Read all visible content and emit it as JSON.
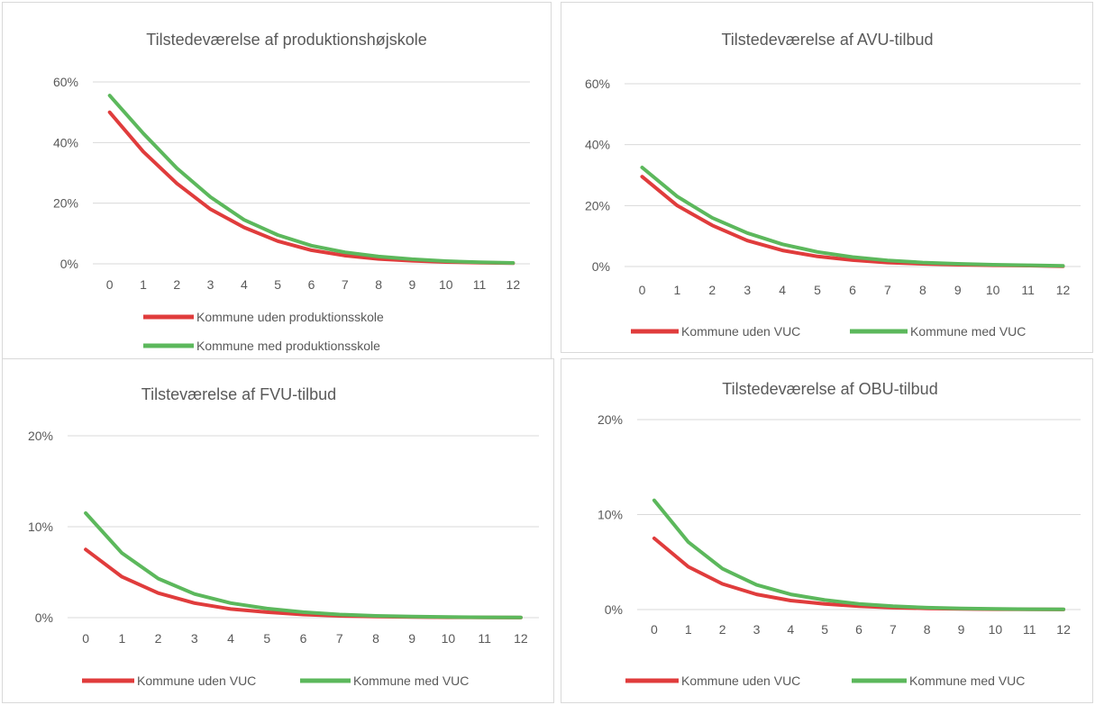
{
  "colors": {
    "series_a": "#e03c3c",
    "series_b": "#5cb85c",
    "grid": "#d9d9d9",
    "text": "#595959"
  },
  "chart_data": [
    {
      "type": "line",
      "title": "Tilstedeværelse af produktionshøjskole",
      "x": [
        0,
        1,
        2,
        3,
        4,
        5,
        6,
        7,
        8,
        9,
        10,
        11,
        12
      ],
      "y_ticks": [
        "0%",
        "20%",
        "40%",
        "60%"
      ],
      "ylim": [
        0,
        0.6
      ],
      "grid": true,
      "legend_position": "bottom",
      "series": [
        {
          "name": "Kommune uden produktionsskole",
          "values": [
            0.5,
            0.37,
            0.265,
            0.18,
            0.12,
            0.075,
            0.045,
            0.027,
            0.016,
            0.01,
            0.006,
            0.004,
            0.002
          ]
        },
        {
          "name": "Kommune med produktionsskole",
          "values": [
            0.555,
            0.43,
            0.315,
            0.22,
            0.145,
            0.095,
            0.06,
            0.038,
            0.024,
            0.015,
            0.009,
            0.005,
            0.003
          ]
        }
      ]
    },
    {
      "type": "line",
      "title": "Tilstedeværelse af AVU-tilbud",
      "x": [
        0,
        1,
        2,
        3,
        4,
        5,
        6,
        7,
        8,
        9,
        10,
        11,
        12
      ],
      "y_ticks": [
        "0%",
        "20%",
        "40%",
        "60%"
      ],
      "ylim": [
        0,
        0.6
      ],
      "grid": true,
      "legend_position": "bottom",
      "series": [
        {
          "name": "Kommune uden VUC",
          "values": [
            0.295,
            0.2,
            0.135,
            0.085,
            0.053,
            0.033,
            0.021,
            0.013,
            0.009,
            0.006,
            0.004,
            0.003,
            0.001
          ]
        },
        {
          "name": "Kommune med VUC",
          "values": [
            0.325,
            0.23,
            0.16,
            0.11,
            0.073,
            0.048,
            0.031,
            0.02,
            0.013,
            0.009,
            0.006,
            0.004,
            0.002
          ]
        }
      ]
    },
    {
      "type": "line",
      "title": "Tilsteværelse af FVU-tilbud",
      "x": [
        0,
        1,
        2,
        3,
        4,
        5,
        6,
        7,
        8,
        9,
        10,
        11,
        12
      ],
      "y_ticks": [
        "0%",
        "10%",
        "20%"
      ],
      "ylim": [
        0,
        0.2
      ],
      "grid": true,
      "legend_position": "bottom",
      "series": [
        {
          "name": "Kommune uden VUC",
          "values": [
            0.075,
            0.045,
            0.027,
            0.016,
            0.0095,
            0.006,
            0.0035,
            0.002,
            0.0012,
            0.0007,
            0.0004,
            0.0002,
            0.0001
          ]
        },
        {
          "name": "Kommune med VUC",
          "values": [
            0.115,
            0.071,
            0.043,
            0.026,
            0.016,
            0.01,
            0.006,
            0.0035,
            0.002,
            0.0012,
            0.0007,
            0.0004,
            0.0002
          ]
        }
      ]
    },
    {
      "type": "line",
      "title": "Tilstedeværelse af OBU-tilbud",
      "x": [
        0,
        1,
        2,
        3,
        4,
        5,
        6,
        7,
        8,
        9,
        10,
        11,
        12
      ],
      "y_ticks": [
        "0%",
        "10%",
        "20%"
      ],
      "ylim": [
        0,
        0.2
      ],
      "grid": true,
      "legend_position": "bottom",
      "series": [
        {
          "name": "Kommune uden VUC",
          "values": [
            0.075,
            0.045,
            0.027,
            0.016,
            0.0095,
            0.006,
            0.0035,
            0.002,
            0.0012,
            0.0007,
            0.0004,
            0.0002,
            0.0001
          ]
        },
        {
          "name": "Kommune med VUC",
          "values": [
            0.115,
            0.071,
            0.043,
            0.026,
            0.016,
            0.01,
            0.006,
            0.0035,
            0.002,
            0.0012,
            0.0007,
            0.0004,
            0.0002
          ]
        }
      ]
    }
  ]
}
